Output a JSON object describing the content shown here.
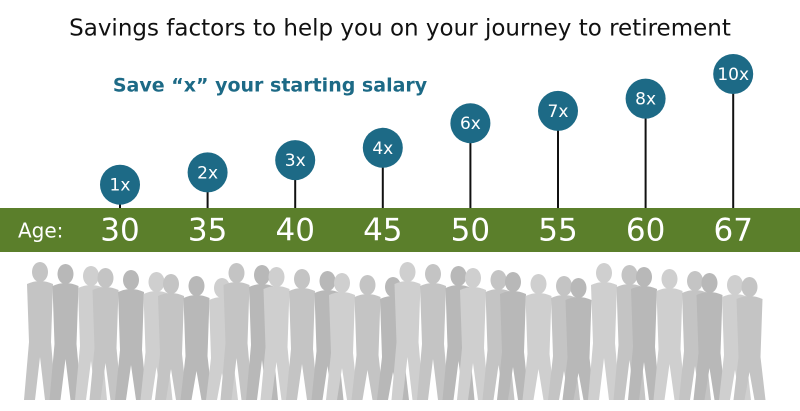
{
  "chart_data": {
    "type": "lollipop",
    "title": "Savings factors to help you on your journey to retirement",
    "subtitle": "Save “x” your starting salary",
    "axis_label": "Age:",
    "categories": [
      "30",
      "35",
      "40",
      "45",
      "50",
      "55",
      "60",
      "67"
    ],
    "values": [
      1,
      2,
      3,
      4,
      6,
      7,
      8,
      10
    ],
    "value_labels": [
      "1x",
      "2x",
      "3x",
      "4x",
      "6x",
      "7x",
      "8x",
      "10x"
    ],
    "color": "#1d6a86",
    "band_color": "#5b7f2b"
  }
}
